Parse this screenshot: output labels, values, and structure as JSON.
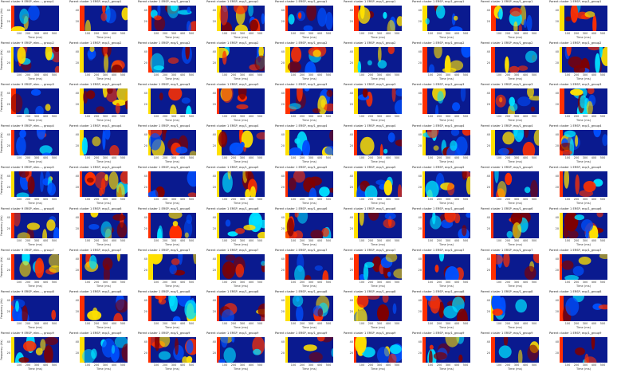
{
  "figure": {
    "rows": 9,
    "cols": 9,
    "xlabel": "Time (ms)",
    "ylabel": "Frequency (Hz)",
    "xticks": [
      "100",
      "200",
      "300",
      "400",
      "500"
    ],
    "yticks": [
      "40",
      "20"
    ]
  },
  "colormap": {
    "low": "#00007f",
    "mid_low": "#0050ff",
    "mid": "#00e0ff",
    "mid_high": "#ffe000",
    "high": "#ff3000",
    "peak": "#800000"
  },
  "panels": [
    {
      "title": "Parent cluster 9 ERSP, elec..., group1"
    },
    {
      "title": "Parent cluster 1 ERSP, ecp/1_group1"
    },
    {
      "title": "Parent cluster 1 ERSP, ecp/1_group1"
    },
    {
      "title": "Parent cluster 1 ERSP, ecp/1_group1"
    },
    {
      "title": "Parent cluster 1 ERSP, ecp/1_group1"
    },
    {
      "title": "Parent cluster 1 ERSP, ecp/1_group1"
    },
    {
      "title": "Parent cluster 1 ERSP, ecp/1_group1"
    },
    {
      "title": "Parent cluster 1 ERSP, ecp/1_group1"
    },
    {
      "title": "Parent cluster 1 ERSP, ecp/1_group1"
    },
    {
      "title": "Parent cluster 9 ERSP, elec..., group2"
    },
    {
      "title": "Parent cluster 1 ERSP, ecp/1_group2"
    },
    {
      "title": "Parent cluster 1 ERSP, ecp/1_group2"
    },
    {
      "title": "Parent cluster 1 ERSP, ecp/1_group2"
    },
    {
      "title": "Parent cluster 1 ERSP, ecp/1_group2"
    },
    {
      "title": "Parent cluster 1 ERSP, ecp/1_group2"
    },
    {
      "title": "Parent cluster 1 ERSP, ecp/1_group2"
    },
    {
      "title": "Parent cluster 1 ERSP, ecp/1_group2"
    },
    {
      "title": "Parent cluster 1 ERSP, ecp/1_group2"
    },
    {
      "title": "Parent cluster 9 ERSP, elec..., group3"
    },
    {
      "title": "Parent cluster 1 ERSP, ecp/1_group3"
    },
    {
      "title": "Parent cluster 1 ERSP, ecp/1_group3"
    },
    {
      "title": "Parent cluster 1 ERSP, ecp/1_group3"
    },
    {
      "title": "Parent cluster 1 ERSP, ecp/1_group3"
    },
    {
      "title": "Parent cluster 1 ERSP, ecp/1_group3"
    },
    {
      "title": "Parent cluster 1 ERSP, ecp/1_group3"
    },
    {
      "title": "Parent cluster 1 ERSP, ecp/1_group3"
    },
    {
      "title": "Parent cluster 1 ERSP, ecp/1_group3"
    },
    {
      "title": "Parent cluster 9 ERSP, elec..., group4"
    },
    {
      "title": "Parent cluster 1 ERSP, ecp/1_group4"
    },
    {
      "title": "Parent cluster 1 ERSP, ecp/1_group4"
    },
    {
      "title": "Parent cluster 1 ERSP, ecp/1_group4"
    },
    {
      "title": "Parent cluster 1 ERSP, ecp/1_group4"
    },
    {
      "title": "Parent cluster 1 ERSP, ecp/1_group4"
    },
    {
      "title": "Parent cluster 1 ERSP, ecp/1_group4"
    },
    {
      "title": "Parent cluster 1 ERSP, ecp/1_group4"
    },
    {
      "title": "Parent cluster 1 ERSP, ecp/1_group4"
    },
    {
      "title": "Parent cluster 9 ERSP, elec..., group5"
    },
    {
      "title": "Parent cluster 1 ERSP, ecp/1_group5"
    },
    {
      "title": "Parent cluster 1 ERSP, ecp/1_group5"
    },
    {
      "title": "Parent cluster 1 ERSP, ecp/1_group5"
    },
    {
      "title": "Parent cluster 1 ERSP, ecp/1_group5"
    },
    {
      "title": "Parent cluster 1 ERSP, ecp/1_group5"
    },
    {
      "title": "Parent cluster 1 ERSP, ecp/1_group5"
    },
    {
      "title": "Parent cluster 1 ERSP, ecp/1_group5"
    },
    {
      "title": "Parent cluster 1 ERSP, ecp/1_group5"
    },
    {
      "title": "Parent cluster 9 ERSP, elec..., group6"
    },
    {
      "title": "Parent cluster 1 ERSP, ecp/1_group6"
    },
    {
      "title": "Parent cluster 1 ERSP, ecp/1_group6"
    },
    {
      "title": "Parent cluster 1 ERSP, ecp/1_group6"
    },
    {
      "title": "Parent cluster 1 ERSP, ecp/1_group6"
    },
    {
      "title": "Parent cluster 1 ERSP, ecp/1_group6"
    },
    {
      "title": "Parent cluster 1 ERSP, ecp/1_group6"
    },
    {
      "title": "Parent cluster 1 ERSP, ecp/1_group6"
    },
    {
      "title": "Parent cluster 1 ERSP, ecp/1_group6"
    },
    {
      "title": "Parent cluster 9 ERSP, elec..., group7"
    },
    {
      "title": "Parent cluster 1 ERSP, ecp/1_group7"
    },
    {
      "title": "Parent cluster 1 ERSP, ecp/1_group7"
    },
    {
      "title": "Parent cluster 1 ERSP, ecp/1_group7"
    },
    {
      "title": "Parent cluster 1 ERSP, ecp/1_group7"
    },
    {
      "title": "Parent cluster 1 ERSP, ecp/1_group7"
    },
    {
      "title": "Parent cluster 1 ERSP, ecp/1_group7"
    },
    {
      "title": "Parent cluster 1 ERSP, ecp/1_group7"
    },
    {
      "title": "Parent cluster 1 ERSP, ecp/1_group7"
    },
    {
      "title": "Parent cluster 9 ERSP, elec..., group8"
    },
    {
      "title": "Parent cluster 1 ERSP, ecp/1_group8"
    },
    {
      "title": "Parent cluster 1 ERSP, ecp/1_group8"
    },
    {
      "title": "Parent cluster 1 ERSP, ecp/1_group8"
    },
    {
      "title": "Parent cluster 1 ERSP, ecp/1_group8"
    },
    {
      "title": "Parent cluster 1 ERSP, ecp/1_group8"
    },
    {
      "title": "Parent cluster 1 ERSP, ecp/1_group8"
    },
    {
      "title": "Parent cluster 1 ERSP, ecp/1_group8"
    },
    {
      "title": "Parent cluster 1 ERSP, ecp/1_group8"
    },
    {
      "title": "Parent cluster 9 ERSP, elec..., group9"
    },
    {
      "title": "Parent cluster 1 ERSP, ecp/1_group9"
    },
    {
      "title": "Parent cluster 1 ERSP, ecp/1_group9"
    },
    {
      "title": "Parent cluster 1 ERSP, ecp/1_group9"
    },
    {
      "title": "Parent cluster 1 ERSP, ecp/1_group9"
    },
    {
      "title": "Parent cluster 1 ERSP, ecp/1_group9"
    },
    {
      "title": "Parent cluster 1 ERSP, ecp/1_group9"
    },
    {
      "title": "Parent cluster 1 ERSP, ecp/1_group9"
    },
    {
      "title": "Parent cluster 1 ERSP, ecp/1_group9"
    }
  ]
}
